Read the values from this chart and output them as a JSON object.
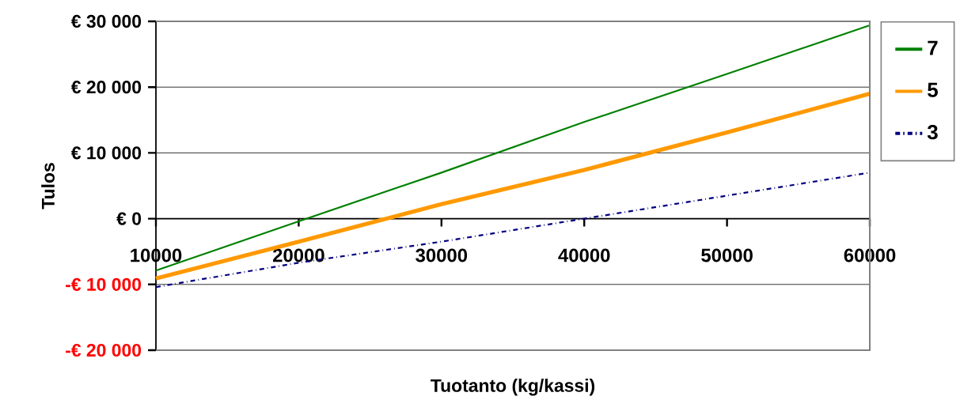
{
  "chart_data": {
    "type": "line",
    "xlabel": "Tuotanto (kg/kassi)",
    "ylabel": "Tulos",
    "x": [
      10000,
      20000,
      30000,
      40000,
      50000,
      60000
    ],
    "series": [
      {
        "name": "7",
        "color": "#008000",
        "line_style": "solid",
        "values": [
          -7900,
          -400,
          7000,
          14700,
          22000,
          29400
        ]
      },
      {
        "name": "5",
        "color": "#ff9900",
        "line_style": "solid",
        "values": [
          -9100,
          -3500,
          2200,
          7400,
          13100,
          19000
        ]
      },
      {
        "name": "3",
        "color": "#000080",
        "line_style": "dashdotted",
        "values": [
          -10400,
          -6700,
          -3500,
          0,
          3500,
          7000
        ]
      }
    ],
    "xlim": [
      10000,
      60000
    ],
    "xticks": [
      10000,
      20000,
      30000,
      40000,
      50000,
      60000
    ],
    "ylim": [
      -20000,
      30000
    ],
    "yticks": [
      {
        "value": -20000,
        "label": "-€ 20 000"
      },
      {
        "value": -10000,
        "label": "-€ 10 000"
      },
      {
        "value": 0,
        "label": "€ 0"
      },
      {
        "value": 10000,
        "label": "€ 10 000"
      },
      {
        "value": 20000,
        "label": "€ 20 000"
      },
      {
        "value": 30000,
        "label": "€ 30 000"
      }
    ],
    "grid": "y",
    "legend": "right",
    "marker": "none"
  }
}
